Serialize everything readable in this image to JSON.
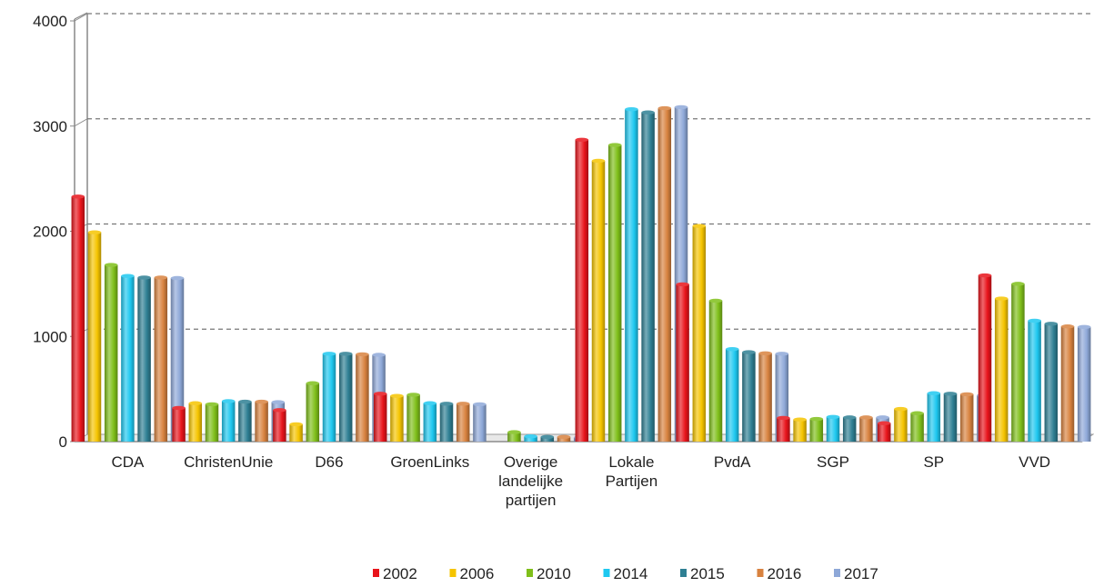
{
  "chart_data": {
    "type": "bar",
    "title": "",
    "xlabel": "",
    "ylabel": "",
    "ylim": [
      0,
      4000
    ],
    "yticks": [
      0,
      1000,
      2000,
      3000,
      4000
    ],
    "grid": true,
    "legend_position": "bottom",
    "categories": [
      [
        "CDA"
      ],
      [
        "ChristenUnie"
      ],
      [
        "D66"
      ],
      [
        "GroenLinks"
      ],
      [
        "Overige",
        "landelijke",
        "partijen"
      ],
      [
        "Lokale",
        "Partijen"
      ],
      [
        "PvdA"
      ],
      [
        "SGP"
      ],
      [
        "SP"
      ],
      [
        "VVD"
      ]
    ],
    "series": [
      {
        "name": "2002",
        "color": "#e8141b",
        "values": [
          2330,
          320,
          300,
          455,
          0,
          2870,
          1495,
          225,
          175,
          1580
        ]
      },
      {
        "name": "2006",
        "color": "#f5c400",
        "values": [
          1990,
          365,
          165,
          435,
          0,
          2670,
          2050,
          210,
          310,
          1360
        ]
      },
      {
        "name": "2010",
        "color": "#7fbf1a",
        "values": [
          1680,
          355,
          555,
          445,
          90,
          2820,
          1340,
          215,
          270,
          1500
        ]
      },
      {
        "name": "2014",
        "color": "#1ec8f0",
        "values": [
          1575,
          385,
          835,
          365,
          50,
          3160,
          880,
          235,
          460,
          1150
        ]
      },
      {
        "name": "2015",
        "color": "#2e7f93",
        "values": [
          1560,
          380,
          835,
          360,
          45,
          3130,
          850,
          230,
          455,
          1120
        ]
      },
      {
        "name": "2016",
        "color": "#d8823f",
        "values": [
          1560,
          380,
          830,
          360,
          45,
          3170,
          840,
          230,
          450,
          1095
        ]
      },
      {
        "name": "2017",
        "color": "#8ea8d8",
        "values": [
          1555,
          375,
          825,
          355,
          40,
          3180,
          835,
          230,
          440,
          1090
        ]
      }
    ]
  }
}
